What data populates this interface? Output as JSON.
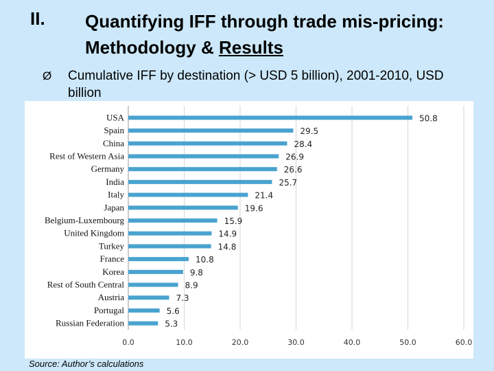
{
  "slide": {
    "section_number": "II.",
    "title_part1": "Quantifying IFF through trade mis-pricing: Methodology & ",
    "title_part2": "Results",
    "bullet_symbol": "Ø",
    "bullet_text": "Cumulative IFF by destination (> USD 5 billion), 2001-2010, USD billion",
    "source": "Source: Author’s calculations"
  },
  "colors": {
    "background": "#cce8fa",
    "bar": "#4aa3cf",
    "text": "#000000"
  },
  "chart_data": {
    "type": "bar",
    "orientation": "horizontal",
    "title": "Cumulative IFF by destination (> USD 5 billion), 2001-2010, USD billion",
    "xlabel": "",
    "ylabel": "",
    "xlim": [
      0,
      60
    ],
    "xticks": [
      0,
      10,
      20,
      30,
      40,
      50,
      60
    ],
    "xtick_labels": [
      "0.0",
      "10.0",
      "20.0",
      "30.0",
      "40.0",
      "50.0",
      "60.0"
    ],
    "grid": true,
    "categories": [
      "USA",
      "Spain",
      "China",
      "Rest of Western Asia",
      "Germany",
      "India",
      "Italy",
      "Japan",
      "Belgium-Luxembourg",
      "United Kingdom",
      "Turkey",
      "France",
      "Korea",
      "Rest of South Central",
      "Austria",
      "Portugal",
      "Russian Federation"
    ],
    "values": [
      50.8,
      29.5,
      28.4,
      26.9,
      26.6,
      25.7,
      21.4,
      19.6,
      15.9,
      14.9,
      14.8,
      10.8,
      9.8,
      8.9,
      7.3,
      5.6,
      5.3
    ],
    "value_labels": [
      "50.8",
      "29.5",
      "28.4",
      "26.9",
      "26.6",
      "25.7",
      "21.4",
      "19.6",
      "15.9",
      "14.9",
      "14.8",
      "10.8",
      "9.8",
      "8.9",
      "7.3",
      "5.6",
      "5.3"
    ]
  }
}
